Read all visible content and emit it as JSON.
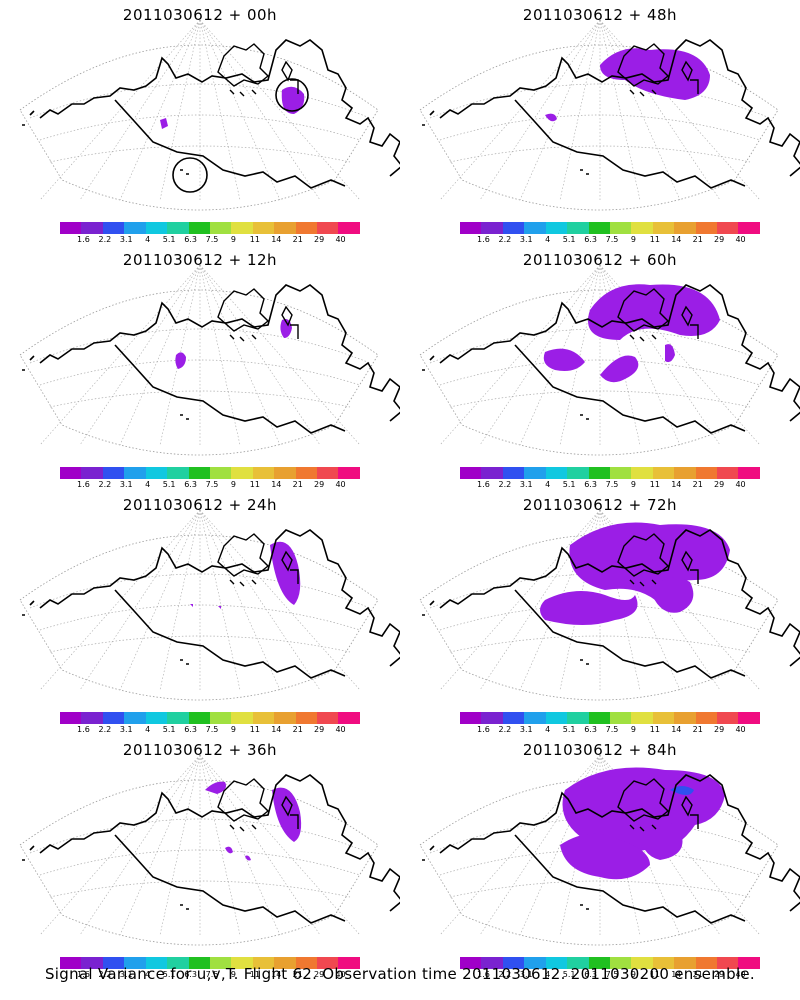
{
  "panels": [
    {
      "title": "2011030612 + 00h",
      "lead": "00h"
    },
    {
      "title": "2011030612 + 48h",
      "lead": "48h"
    },
    {
      "title": "2011030612 + 12h",
      "lead": "12h"
    },
    {
      "title": "2011030612 + 60h",
      "lead": "60h"
    },
    {
      "title": "2011030612 + 24h",
      "lead": "24h"
    },
    {
      "title": "2011030612 + 72h",
      "lead": "72h"
    },
    {
      "title": "2011030612 + 36h",
      "lead": "36h"
    },
    {
      "title": "2011030612 + 84h",
      "lead": "84h"
    }
  ],
  "colorbar": {
    "colors": [
      "#a000c8",
      "#7a22d0",
      "#3050f0",
      "#20a0ec",
      "#10c8e0",
      "#20d0a0",
      "#20c020",
      "#a0e040",
      "#e0e040",
      "#e8c038",
      "#e8a030",
      "#f07830",
      "#f04850",
      "#f00c80"
    ],
    "labels": [
      "1.6",
      "2.2",
      "3.1",
      "4",
      "5.1",
      "6.3",
      "7.5",
      "9",
      "11",
      "14",
      "21",
      "29",
      "40"
    ]
  },
  "footer": "Signal Variance for u,v,T. Flight 62. Observation time 2011030612. 2011030200 ensemble."
}
